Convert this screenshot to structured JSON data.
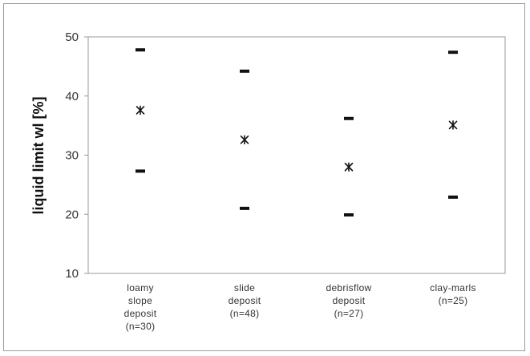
{
  "chart_data": {
    "type": "scatter",
    "title": "",
    "xlabel": "",
    "ylabel": "liquid limit wl [%]",
    "ylim": [
      10,
      50
    ],
    "yticks": [
      10,
      20,
      30,
      40,
      50
    ],
    "grid": false,
    "legend": "none",
    "categories": [
      {
        "lines": [
          "loamy",
          "slope",
          "deposit",
          "(n=30)"
        ]
      },
      {
        "lines": [
          "slide",
          "deposit",
          "(n=48)"
        ]
      },
      {
        "lines": [
          "debrisflow",
          "deposit",
          "(n=27)"
        ]
      },
      {
        "lines": [
          "clay-marls",
          "(n=25)"
        ]
      }
    ],
    "series": [
      {
        "marker": "dash",
        "role": "max",
        "values": [
          47.8,
          44.2,
          36.2,
          47.4
        ]
      },
      {
        "marker": "asterisk",
        "role": "mean",
        "values": [
          37.6,
          32.6,
          28.0,
          35.1
        ]
      },
      {
        "marker": "dash",
        "role": "min",
        "values": [
          27.3,
          21.0,
          19.9,
          22.9
        ]
      }
    ],
    "colors": {
      "marker": "#111111",
      "axis": "#9a9a9a",
      "text": "#333333"
    }
  }
}
